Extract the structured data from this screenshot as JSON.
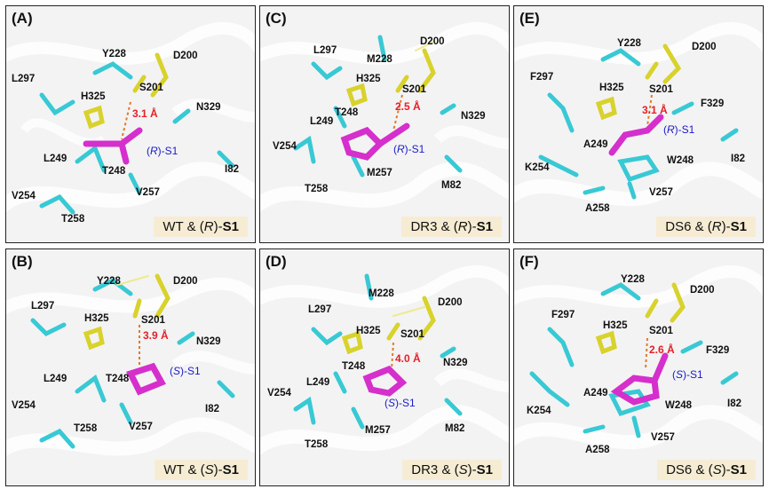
{
  "colors": {
    "protein": "#55d7e0",
    "catalytic": "#e3dd3a",
    "ligand": "#d52fcc",
    "distance": "#e5202a",
    "ligand_label": "#1a1acc"
  },
  "panels": [
    {
      "label": "(A)",
      "variant": "WT",
      "enantiomer": "R",
      "ligand": "S1",
      "distance": "3.1 Å",
      "residues": [
        "Y228",
        "D200",
        "L297",
        "H325",
        "S201",
        "N329",
        "L249",
        "T248",
        "I82",
        "V254",
        "V257",
        "T258"
      ]
    },
    {
      "label": "(B)",
      "variant": "WT",
      "enantiomer": "S",
      "ligand": "S1",
      "distance": "3.9 Å",
      "residues": [
        "Y228",
        "D200",
        "L297",
        "H325",
        "S201",
        "N329",
        "L249",
        "T248",
        "V254",
        "I82",
        "T258",
        "V257"
      ]
    },
    {
      "label": "(C)",
      "variant": "DR3",
      "enantiomer": "R",
      "ligand": "S1",
      "distance": "2.5 Å",
      "residues": [
        "D200",
        "L297",
        "M228",
        "H325",
        "S201",
        "T248",
        "N329",
        "L249",
        "V254",
        "M257",
        "T258",
        "M82"
      ]
    },
    {
      "label": "(D)",
      "variant": "DR3",
      "enantiomer": "S",
      "ligand": "S1",
      "distance": "4.0 Å",
      "residues": [
        "M228",
        "D200",
        "L297",
        "H325",
        "S201",
        "T248",
        "N329",
        "L249",
        "V254",
        "M257",
        "T258",
        "M82"
      ]
    },
    {
      "label": "(E)",
      "variant": "DS6",
      "enantiomer": "R",
      "ligand": "S1",
      "distance": "3.1 Å",
      "residues": [
        "Y228",
        "D200",
        "F297",
        "H325",
        "S201",
        "F329",
        "A249",
        "W248",
        "K254",
        "I82",
        "V257",
        "A258"
      ]
    },
    {
      "label": "(F)",
      "variant": "DS6",
      "enantiomer": "S",
      "ligand": "S1",
      "distance": "2.6 Å",
      "residues": [
        "Y228",
        "D200",
        "F297",
        "H325",
        "S201",
        "F329",
        "A249",
        "K254",
        "W248",
        "I82",
        "V257",
        "A258"
      ]
    }
  ]
}
